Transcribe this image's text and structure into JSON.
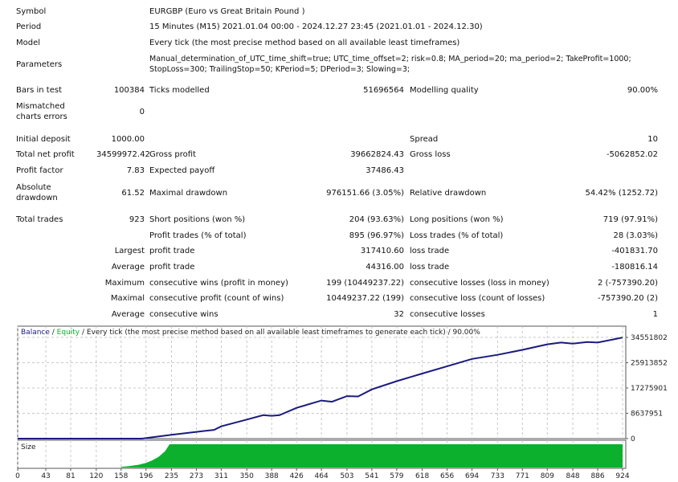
{
  "header": {
    "symbol_label": "Symbol",
    "symbol": "EURGBP (Euro vs Great Britain Pound )",
    "period_label": "Period",
    "period": "15 Minutes (M15) 2021.01.04 00:00 - 2024.12.27 23:45 (2021.01.01 - 2024.12.30)",
    "model_label": "Model",
    "model": "Every tick (the most precise method based on all available least timeframes)",
    "parameters_label": "Parameters",
    "parameters": "Manual_determination_of_UTC_time_shift=true; UTC_time_offset=2; risk=0.8; MA_period=20; ma_period=2; TakeProfit=1000; StopLoss=300; TrailingStop=50; KPeriod=5; DPeriod=3; Slowing=3;"
  },
  "stats": {
    "bars_label": "Bars in test",
    "bars": "100384",
    "ticks_label": "Ticks modelled",
    "ticks": "51696564",
    "quality_label": "Modelling quality",
    "quality": "90.00%",
    "mismatch_label": "Mismatched charts errors",
    "mismatch": "0",
    "deposit_label": "Initial deposit",
    "deposit": "1000.00",
    "spread_label": "Spread",
    "spread": "10",
    "net_label": "Total net profit",
    "net": "34599972.42",
    "gross_profit_label": "Gross profit",
    "gross_profit": "39662824.43",
    "gross_loss_label": "Gross loss",
    "gross_loss": "-5062852.02",
    "pf_label": "Profit factor",
    "pf": "7.83",
    "payoff_label": "Expected payoff",
    "payoff": "37486.43",
    "abs_dd_label": "Absolute drawdown",
    "abs_dd": "61.52",
    "max_dd_label": "Maximal drawdown",
    "max_dd": "976151.66 (3.05%)",
    "rel_dd_label": "Relative drawdown",
    "rel_dd": "54.42% (1252.72)",
    "trades_label": "Total trades",
    "trades": "923",
    "short_label": "Short positions (won %)",
    "short": "204 (93.63%)",
    "long_label": "Long positions (won %)",
    "long": "719 (97.91%)",
    "profit_trades_label": "Profit trades (% of total)",
    "profit_trades": "895 (96.97%)",
    "loss_trades_label": "Loss trades (% of total)",
    "loss_trades": "28 (3.03%)",
    "largest": "Largest",
    "largest_profit_label": "profit trade",
    "largest_profit": "317410.60",
    "largest_loss_label": "loss trade",
    "largest_loss": "-401831.70",
    "average": "Average",
    "avg_profit_label": "profit trade",
    "avg_profit": "44316.00",
    "avg_loss_label": "loss trade",
    "avg_loss": "-180816.14",
    "maximum": "Maximum",
    "max_wins_label": "consecutive wins (profit in money)",
    "max_wins": "199 (10449237.22)",
    "max_losses_label": "consecutive losses (loss in money)",
    "max_losses": "2 (-757390.20)",
    "maximal": "Maximal",
    "maximal_profit_label": "consecutive profit (count of wins)",
    "maximal_profit": "10449237.22 (199)",
    "maximal_loss_label": "consecutive loss (count of losses)",
    "maximal_loss": "-757390.20 (2)",
    "average2": "Average",
    "avg_wins_label": "consecutive wins",
    "avg_wins": "32",
    "avg_losses_label": "consecutive losses",
    "avg_losses": "1"
  },
  "chart_legend": {
    "balance": "Balance",
    "sep1": " / ",
    "equity": "Equity",
    "rest": " / Every tick (the most precise method based on all available least timeframes to generate each tick) / 90.00%"
  },
  "chart_data": {
    "type": "line",
    "title": "Balance / Equity / Every tick (the most precise method based on all available least timeframes to generate each tick) / 90.00%",
    "colors": {
      "balance": "#1a1a80",
      "size": "#0cb02c",
      "grid": "#c8c8c8"
    },
    "ylim": [
      0,
      34551802
    ],
    "yticks": [
      "34551802",
      "25913852",
      "17275901",
      "8637951",
      "0"
    ],
    "ytick_values": [
      34551802,
      25913852,
      17275901,
      8637951,
      0
    ],
    "xlim": [
      0,
      924
    ],
    "xticks": [
      "0",
      "43",
      "81",
      "120",
      "158",
      "196",
      "235",
      "273",
      "311",
      "350",
      "388",
      "426",
      "464",
      "503",
      "541",
      "579",
      "618",
      "656",
      "694",
      "733",
      "771",
      "809",
      "848",
      "886",
      "924"
    ],
    "size_label": "Size",
    "balance": {
      "x": [
        0,
        190,
        200,
        235,
        273,
        300,
        311,
        350,
        375,
        388,
        400,
        426,
        464,
        480,
        503,
        520,
        541,
        579,
        618,
        656,
        694,
        733,
        771,
        809,
        830,
        848,
        870,
        886,
        924
      ],
      "y": [
        1000,
        1000,
        300000,
        1300000,
        2300000,
        3000000,
        4200000,
        6500000,
        8000000,
        7800000,
        8000000,
        10500000,
        13000000,
        12600000,
        14500000,
        14400000,
        16800000,
        19600000,
        22200000,
        24700000,
        27200000,
        28600000,
        30300000,
        32200000,
        32800000,
        32400000,
        33000000,
        32800000,
        34500000
      ]
    },
    "size": {
      "x": [
        158,
        170,
        185,
        196,
        205,
        215,
        225,
        232,
        924
      ],
      "y": [
        0.03,
        0.06,
        0.12,
        0.2,
        0.3,
        0.45,
        0.7,
        1,
        1
      ]
    }
  }
}
